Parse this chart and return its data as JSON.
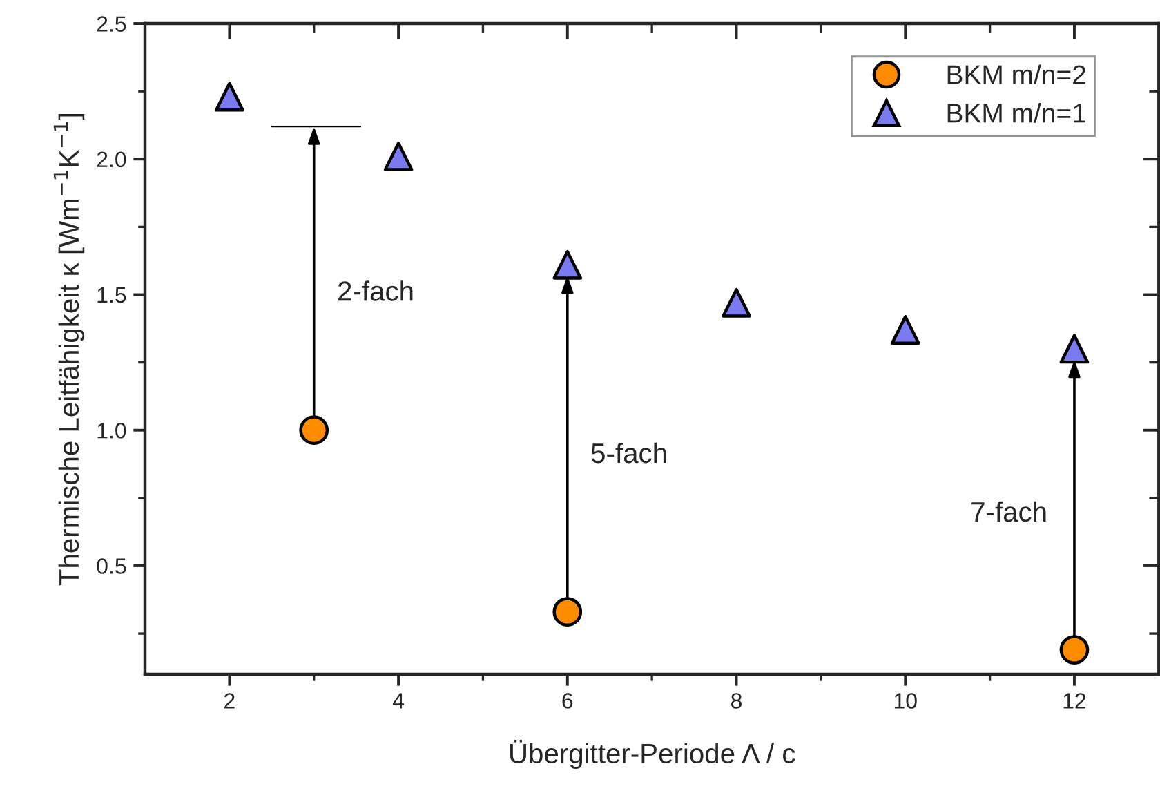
{
  "chart_data": {
    "type": "scatter",
    "xlabel": "Übergitter-Periode Λ / c",
    "ylabel": "Thermische Leitfähigkeit κ [Wm$^{−1}$K$^{−1}$]",
    "series": [
      {
        "name": "BKM m/n=2",
        "color": "#ff8c00",
        "marker": "circle",
        "x": [
          3,
          6,
          12
        ],
        "values": [
          1.0,
          0.33,
          0.19
        ]
      },
      {
        "name": "BKM m/n=1",
        "color": "#7b7bf0",
        "marker": "triangle",
        "x": [
          2,
          4,
          6,
          8,
          10,
          12
        ],
        "values": [
          2.23,
          2.01,
          1.61,
          1.47,
          1.37,
          1.3
        ]
      }
    ],
    "xlim": [
      1,
      13
    ],
    "ylim": [
      0.1,
      2.5
    ],
    "xticks": [
      2,
      4,
      6,
      8,
      10,
      12,
      {
        "value": 3,
        "label": null
      },
      {
        "value": 5,
        "label": null
      },
      {
        "value": 7,
        "label": null
      },
      {
        "value": 9,
        "label": null
      },
      {
        "value": 11,
        "label": null
      }
    ],
    "yticks": [
      {
        "value": 0.5,
        "label": "0.5"
      },
      {
        "value": 1,
        "label": "1.0"
      },
      {
        "value": 1.5,
        "label": "1.5"
      },
      {
        "value": 2,
        "label": "2.0"
      },
      {
        "value": 2.5,
        "label": "2.5"
      },
      {
        "value": 0.25,
        "label": null
      },
      {
        "value": 0.75,
        "label": null
      },
      {
        "value": 1.25,
        "label": null
      },
      {
        "value": 1.75,
        "label": null
      },
      {
        "value": 2.25,
        "label": null
      }
    ],
    "annotations": [
      "2-fach",
      "5-fach",
      "7-fach"
    ],
    "legend": "top right",
    "grid": false
  }
}
